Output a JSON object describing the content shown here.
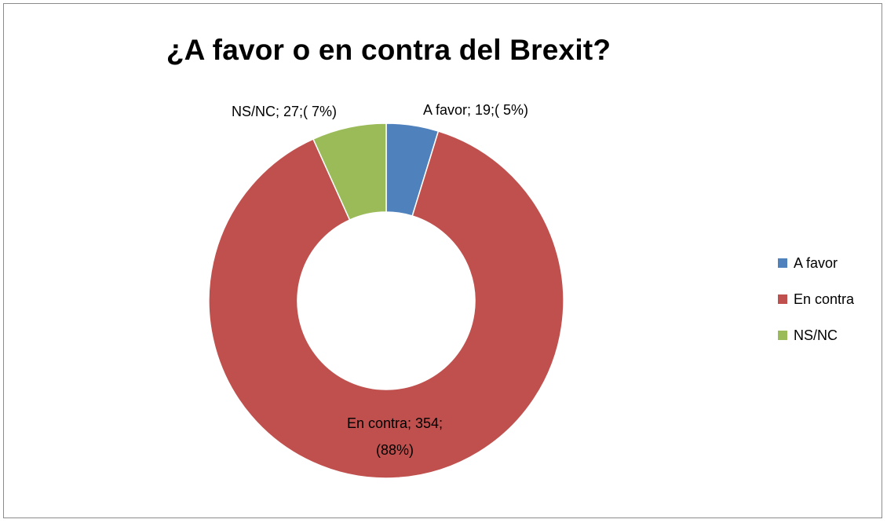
{
  "chart_data": {
    "type": "pie",
    "variant": "doughnut",
    "title": "¿A favor o en contra del Brexit?",
    "categories": [
      "A favor",
      "En contra",
      "NS/NC"
    ],
    "values": [
      19,
      354,
      27
    ],
    "percentages": [
      "5%",
      "88%",
      "7%"
    ],
    "colors": [
      "#4f81bd",
      "#c0504d",
      "#9bbb59"
    ],
    "data_labels": [
      [
        "A favor; 19;( 5%)"
      ],
      [
        "En contra; 354;",
        "(88%)"
      ],
      [
        "NS/NC; 27;( 7%)"
      ]
    ],
    "legend": {
      "position": "right",
      "entries": [
        "A favor",
        "En contra",
        "NS/NC"
      ]
    }
  }
}
